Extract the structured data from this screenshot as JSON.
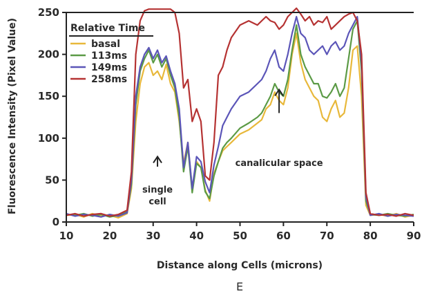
{
  "chart_data": {
    "type": "line",
    "xlabel": "Distance along Cells (microns)",
    "ylabel": "Fluorescence Intensity (Pixel Value)",
    "xlim": [
      10,
      90
    ],
    "ylim": [
      0,
      250
    ],
    "x_ticks": [
      10,
      20,
      30,
      40,
      50,
      60,
      70,
      80,
      90
    ],
    "y_ticks": [
      0,
      50,
      100,
      150,
      200,
      250
    ],
    "grid": false,
    "legend": {
      "title": "Relative Time",
      "position": "top-left"
    },
    "panel_label": "E",
    "annotations": [
      {
        "lines": [
          "single",
          "cell"
        ],
        "arrow_x": 31,
        "arrow_y_from": 66,
        "arrow_y_to": 78,
        "text_x": 31,
        "text_y": 35
      },
      {
        "lines": [
          "canalicular space"
        ],
        "arrow_x": 59,
        "arrow_y_from": 130,
        "arrow_y_to": 158,
        "text_x": 59,
        "text_y": 67
      }
    ],
    "series": [
      {
        "name": "basal",
        "color": "#e8b83a",
        "x": [
          10,
          12,
          14,
          16,
          18,
          20,
          22,
          24,
          25,
          26,
          27,
          28,
          29,
          30,
          31,
          32,
          33,
          34,
          35,
          36,
          37,
          38,
          39,
          40,
          41,
          42,
          43,
          44,
          45,
          46,
          47,
          48,
          50,
          52,
          54,
          55,
          56,
          57,
          58,
          59,
          60,
          61,
          62,
          63,
          64,
          65,
          66,
          67,
          68,
          69,
          70,
          71,
          72,
          73,
          74,
          75,
          76,
          77,
          78,
          79,
          80,
          82,
          84,
          86,
          88,
          90
        ],
        "y": [
          8,
          9,
          6,
          10,
          7,
          8,
          5,
          10,
          40,
          120,
          165,
          185,
          190,
          175,
          180,
          170,
          188,
          165,
          155,
          120,
          70,
          95,
          38,
          72,
          65,
          38,
          25,
          58,
          72,
          85,
          90,
          95,
          105,
          110,
          118,
          122,
          135,
          140,
          155,
          145,
          140,
          160,
          200,
          225,
          190,
          170,
          160,
          150,
          145,
          125,
          120,
          135,
          145,
          125,
          130,
          160,
          205,
          210,
          150,
          20,
          8,
          9,
          7,
          10,
          6,
          8
        ]
      },
      {
        "name": "113ms",
        "color": "#5b9a45",
        "x": [
          10,
          12,
          14,
          16,
          18,
          20,
          22,
          24,
          25,
          26,
          27,
          28,
          29,
          30,
          31,
          32,
          33,
          34,
          35,
          36,
          37,
          38,
          39,
          40,
          41,
          42,
          43,
          44,
          45,
          46,
          47,
          48,
          50,
          52,
          54,
          55,
          56,
          57,
          58,
          59,
          60,
          61,
          62,
          63,
          64,
          65,
          66,
          67,
          68,
          69,
          70,
          71,
          72,
          73,
          74,
          75,
          76,
          77,
          78,
          79,
          80,
          82,
          84,
          86,
          88,
          90
        ],
        "y": [
          9,
          8,
          10,
          7,
          9,
          6,
          8,
          12,
          45,
          140,
          180,
          195,
          205,
          190,
          200,
          185,
          195,
          175,
          160,
          125,
          60,
          90,
          35,
          70,
          65,
          36,
          28,
          55,
          72,
          88,
          95,
          100,
          112,
          118,
          125,
          130,
          140,
          150,
          165,
          155,
          150,
          170,
          205,
          235,
          200,
          185,
          175,
          165,
          165,
          150,
          148,
          155,
          165,
          150,
          160,
          195,
          230,
          240,
          180,
          25,
          9,
          8,
          10,
          8,
          7,
          9
        ]
      },
      {
        "name": "149ms",
        "color": "#5b55b8",
        "x": [
          10,
          12,
          14,
          16,
          18,
          20,
          22,
          24,
          25,
          26,
          27,
          28,
          29,
          30,
          31,
          32,
          33,
          34,
          35,
          36,
          37,
          38,
          39,
          40,
          41,
          42,
          43,
          44,
          45,
          46,
          47,
          48,
          50,
          52,
          54,
          55,
          56,
          57,
          58,
          59,
          60,
          61,
          62,
          63,
          64,
          65,
          66,
          67,
          68,
          69,
          70,
          71,
          72,
          73,
          74,
          75,
          76,
          77,
          78,
          79,
          80,
          82,
          84,
          86,
          88,
          90
        ],
        "y": [
          10,
          7,
          9,
          8,
          6,
          9,
          7,
          11,
          50,
          150,
          185,
          200,
          208,
          195,
          205,
          190,
          198,
          180,
          165,
          135,
          65,
          95,
          40,
          78,
          72,
          48,
          35,
          68,
          90,
          115,
          125,
          135,
          150,
          155,
          165,
          170,
          180,
          195,
          205,
          185,
          180,
          200,
          225,
          245,
          225,
          220,
          205,
          200,
          205,
          210,
          200,
          210,
          215,
          205,
          210,
          225,
          235,
          245,
          190,
          30,
          8,
          10,
          7,
          9,
          8,
          7
        ]
      },
      {
        "name": "258ms",
        "color": "#b53232",
        "x": [
          10,
          12,
          14,
          16,
          18,
          20,
          22,
          24,
          25,
          26,
          27,
          28,
          29,
          30,
          31,
          32,
          33,
          34,
          35,
          36,
          37,
          38,
          39,
          40,
          41,
          42,
          43,
          44,
          45,
          46,
          47,
          48,
          50,
          52,
          54,
          55,
          56,
          57,
          58,
          59,
          60,
          61,
          62,
          63,
          64,
          65,
          66,
          67,
          68,
          69,
          70,
          71,
          72,
          73,
          74,
          75,
          76,
          77,
          78,
          79,
          80,
          82,
          84,
          86,
          88,
          90
        ],
        "y": [
          8,
          10,
          7,
          9,
          10,
          7,
          9,
          14,
          60,
          200,
          240,
          252,
          254,
          254,
          254,
          254,
          254,
          254,
          250,
          225,
          160,
          170,
          120,
          135,
          120,
          55,
          50,
          95,
          175,
          185,
          205,
          220,
          235,
          240,
          235,
          240,
          245,
          240,
          238,
          230,
          235,
          245,
          250,
          255,
          248,
          240,
          245,
          235,
          240,
          238,
          245,
          230,
          235,
          240,
          245,
          248,
          250,
          240,
          200,
          35,
          10,
          8,
          9,
          7,
          10,
          8
        ]
      }
    ]
  }
}
